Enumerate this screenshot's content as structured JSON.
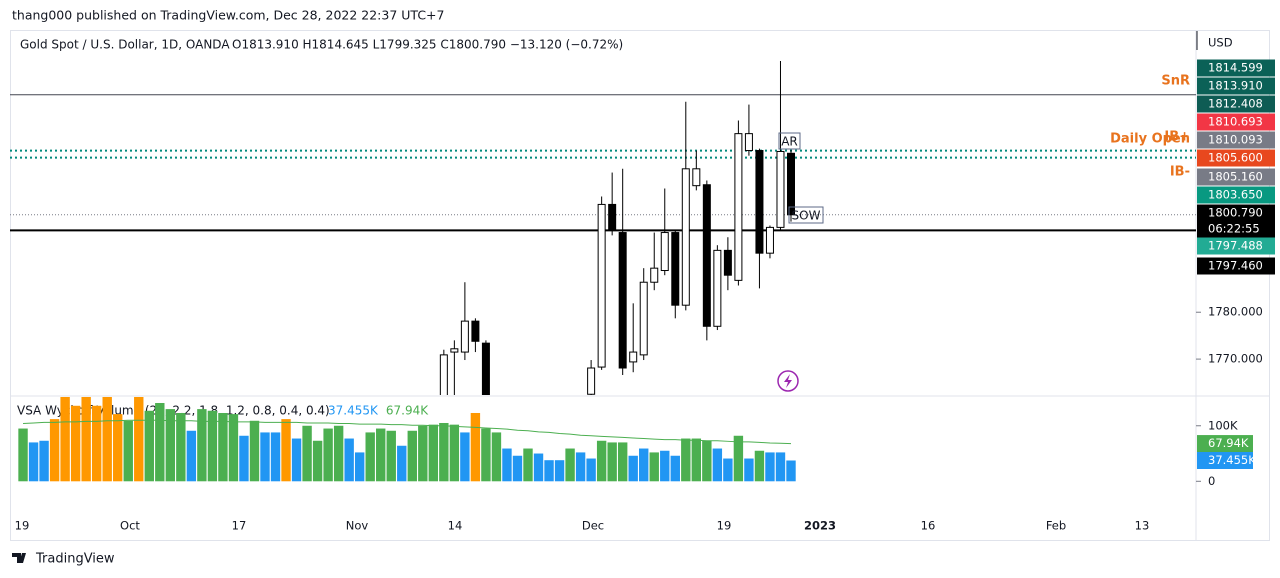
{
  "header": "thang000 published on TradingView.com, Dec 28, 2022 22:37 UTC+7",
  "footer": "TradingView",
  "chart_data": [
    {
      "type": "candlestick",
      "title": "Gold Spot / U.S. Dollar, 1D, OANDA",
      "ohlc_text": "O1813.910  H1814.645  L1799.325  C1800.790  −13.120 (−0.72%)",
      "axis_unit": "USD",
      "ylim": [
        1762.34,
        1840
      ],
      "yticks": [
        {
          "value": 1780,
          "label": "1780.000"
        },
        {
          "value": 1770,
          "label": "1770.000"
        }
      ],
      "up_color": "#ffffff",
      "down_color": "#000000",
      "wick_color": "#000000",
      "open": [
        1761,
        1771.5,
        1771.5,
        1778.1,
        1773.4,
        null,
        null,
        null,
        null,
        null,
        null,
        null,
        null,
        null,
        1762.5,
        1768.3,
        1803.0,
        1797.0,
        1769.4,
        1770.9,
        1786.4,
        1788.9,
        1797.0,
        1781.5,
        1807.0,
        1807.2,
        1777.0,
        1793.2,
        1786.8,
        1814.5,
        1814.5,
        1792.6,
        1798.1,
        1813.91
      ],
      "high": [
        1772,
        1774,
        1786.4,
        1778.7,
        1774.0,
        null,
        null,
        null,
        null,
        null,
        null,
        null,
        null,
        null,
        1769.8,
        1804.7,
        1809.8,
        1810.6,
        1781.9,
        1789.4,
        1797.0,
        1806.4,
        1797.5,
        1824.9,
        1814.5,
        1808.1,
        1794.3,
        1796.0,
        1820.9,
        1824.3,
        1814.9,
        1798.5,
        1833.6,
        1814.645
      ],
      "low": [
        1759,
        1760,
        1769.8,
        1771.5,
        1758,
        null,
        null,
        null,
        null,
        null,
        null,
        null,
        null,
        null,
        1760,
        1767.7,
        1796.4,
        1766.6,
        1767.2,
        1769.8,
        1784.7,
        1787.9,
        1778.7,
        1780.4,
        1806.0,
        1774.0,
        1776.2,
        1784.7,
        1785.7,
        1813.4,
        1785.1,
        1791.5,
        1797.5,
        1799.325
      ],
      "close": [
        1770.9,
        1772.2,
        1778.1,
        1773.8,
        1760,
        null,
        null,
        null,
        null,
        null,
        null,
        null,
        null,
        null,
        1768.1,
        1803.0,
        1797.5,
        1768.1,
        1771.5,
        1786.4,
        1789.4,
        1797.0,
        1781.5,
        1810.6,
        1810.6,
        1777.0,
        1793.2,
        1787.9,
        1818.1,
        1818.1,
        1792.6,
        1798.1,
        1814.3,
        1800.79
      ],
      "levels": [
        {
          "value": 1826.4,
          "color": "#434651",
          "width": 1,
          "dashed": false
        },
        {
          "value": 1814.47,
          "color": "#00897b",
          "width": 2,
          "dashed": true
        },
        {
          "value": 1812.98,
          "color": "#00897b",
          "width": 2,
          "dashed": true
        },
        {
          "value": 1800.79,
          "color": "#787b86",
          "width": 1,
          "dashed": true
        },
        {
          "value": 1797.45,
          "color": "#000000",
          "width": 2,
          "dashed": false
        }
      ],
      "level_labels": [
        "SnR",
        "IB+",
        "Daily Open",
        "IB-"
      ],
      "level_label_color": "#e8731e",
      "annotations": [
        "AR",
        "SOW"
      ],
      "price_labels": [
        {
          "label": "1814.599",
          "color": "#0b6157"
        },
        {
          "label": "1813.910",
          "color": "#0b6157"
        },
        {
          "label": "1812.408",
          "color": "#0e5c54"
        },
        {
          "label": "1810.693",
          "color": "#f23645"
        },
        {
          "label": "1810.093",
          "color": "#787b86"
        },
        {
          "label": "1805.600",
          "color": "#e8481e"
        },
        {
          "label": "1805.160",
          "color": "#787b86"
        },
        {
          "label": "1803.650",
          "color": "#089981"
        },
        {
          "label": "1800.790",
          "color": "#000000"
        },
        {
          "label": "06:22:55",
          "color": "#000000"
        },
        {
          "label": "1797.488",
          "color": "#22ab94"
        },
        {
          "label": "1797.460",
          "color": "#000000"
        }
      ],
      "x_labels": [
        "19",
        "Oct",
        "17",
        "Nov",
        "14",
        "Dec",
        "19",
        "2023",
        "16",
        "Feb",
        "13"
      ]
    },
    {
      "type": "bar",
      "title": "VSA Wyckoff Volume (20, 2.2, 1.8, 1.2, 0.8, 0.4, 0.4)",
      "legend_values": [
        {
          "label": "37.455K",
          "color": "#2196f3"
        },
        {
          "label": "67.94K",
          "color": "#4caf50"
        }
      ],
      "ylim": [
        -60.7,
        151.8
      ],
      "yticks": [
        {
          "value": 100,
          "label": "100K"
        },
        0
      ],
      "values": [
        95,
        70,
        73,
        112,
        160,
        136,
        160,
        136,
        160,
        121,
        109,
        160,
        127,
        141,
        130,
        123,
        91,
        130,
        127,
        123,
        121,
        82,
        109,
        88,
        88,
        112,
        77,
        100,
        73,
        95,
        100,
        77,
        52,
        88,
        95,
        91,
        64,
        91,
        100,
        102,
        105,
        102,
        88,
        123,
        95,
        88,
        59,
        46,
        59,
        50,
        38,
        38,
        59,
        52,
        41,
        73,
        70,
        70,
        46,
        59,
        52,
        55,
        46,
        77,
        77,
        73,
        59,
        41,
        82,
        41,
        55,
        52,
        52,
        37.455
      ],
      "colors": [
        "#4caf50",
        "#2196f3",
        "#2196f3",
        "#ff9800",
        "#ff9800",
        "#ff9800",
        "#ff9800",
        "#ff9800",
        "#ff9800",
        "#ff9800",
        "#4caf50",
        "#ff9800",
        "#4caf50",
        "#4caf50",
        "#4caf50",
        "#4caf50",
        "#2196f3",
        "#4caf50",
        "#4caf50",
        "#4caf50",
        "#4caf50",
        "#2196f3",
        "#4caf50",
        "#2196f3",
        "#2196f3",
        "#ff9800",
        "#2196f3",
        "#4caf50",
        "#4caf50",
        "#4caf50",
        "#4caf50",
        "#2196f3",
        "#2196f3",
        "#4caf50",
        "#4caf50",
        "#4caf50",
        "#2196f3",
        "#4caf50",
        "#4caf50",
        "#4caf50",
        "#4caf50",
        "#4caf50",
        "#2196f3",
        "#ff9800",
        "#4caf50",
        "#4caf50",
        "#2196f3",
        "#2196f3",
        "#4caf50",
        "#2196f3",
        "#2196f3",
        "#2196f3",
        "#4caf50",
        "#2196f3",
        "#2196f3",
        "#4caf50",
        "#4caf50",
        "#4caf50",
        "#2196f3",
        "#2196f3",
        "#4caf50",
        "#2196f3",
        "#2196f3",
        "#4caf50",
        "#4caf50",
        "#4caf50",
        "#2196f3",
        "#2196f3",
        "#4caf50",
        "#2196f3",
        "#4caf50",
        "#2196f3",
        "#2196f3",
        "#2196f3"
      ],
      "ma": {
        "color": "#4caf50",
        "values": [
          104,
          105,
          106,
          106,
          107,
          107,
          108,
          108,
          109,
          109,
          110,
          110,
          110,
          110,
          109,
          109,
          109,
          108,
          108,
          108,
          107,
          107,
          107,
          106,
          106,
          106,
          106,
          105,
          105,
          105,
          104,
          104,
          103,
          103,
          103,
          102,
          102,
          101,
          101,
          100,
          100,
          99,
          98,
          97,
          96,
          95,
          94,
          92,
          91,
          89,
          88,
          86,
          85,
          83,
          82,
          81,
          80,
          79,
          78,
          77,
          76,
          75,
          75,
          74,
          74,
          73,
          73,
          72,
          71,
          71,
          70,
          69,
          68.5,
          67.94
        ]
      },
      "last_labels": [
        {
          "value": 67.94,
          "label": "67.94K",
          "color": "#4caf50"
        },
        {
          "value": 37.455,
          "label": "37.455K",
          "color": "#2196f3"
        }
      ]
    }
  ]
}
